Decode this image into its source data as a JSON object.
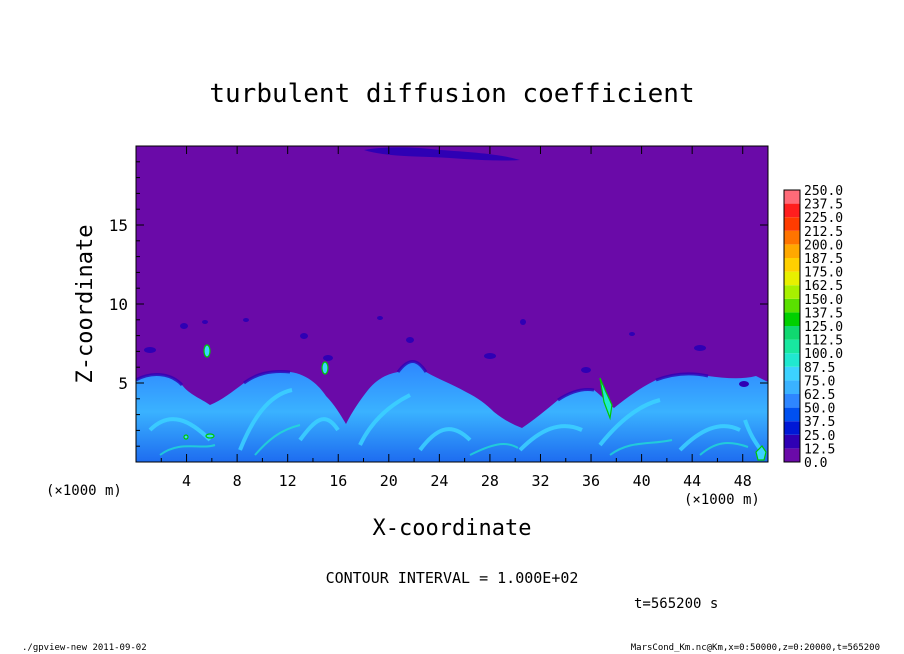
{
  "chart_data": {
    "type": "heatmap",
    "title": "turbulent diffusion coefficient",
    "xlabel": "X-coordinate",
    "ylabel": "Z-coordinate",
    "x_unit": "(×1000 m)",
    "y_unit": "(×1000 m)",
    "xlim": [
      0,
      50
    ],
    "ylim": [
      0,
      20
    ],
    "x_ticks": [
      4,
      8,
      12,
      16,
      20,
      24,
      28,
      32,
      36,
      40,
      44,
      48
    ],
    "y_ticks": [
      5,
      10,
      15
    ],
    "colorbar": {
      "levels": [
        "0.0",
        "12.5",
        "25.0",
        "37.5",
        "50.0",
        "62.5",
        "75.0",
        "87.5",
        "100.0",
        "112.5",
        "125.0",
        "137.5",
        "150.0",
        "162.5",
        "175.0",
        "187.5",
        "200.0",
        "212.5",
        "225.0",
        "237.5",
        "250.0"
      ],
      "colors": [
        "#6a0aa8",
        "#2f00b4",
        "#0018d6",
        "#0050f0",
        "#2e86ff",
        "#3ab2ff",
        "#3cd2ff",
        "#20e8d0",
        "#18e8a0",
        "#10d870",
        "#00d000",
        "#5ae000",
        "#a8f000",
        "#e8f000",
        "#ffd000",
        "#ffa800",
        "#ff7400",
        "#ff3c00",
        "#ff1e1e",
        "#ff6a78"
      ]
    },
    "field_description": "Background near 0.0 (purple) above ~5 km; turbulent layer below ~5 km with values up to ~100 (cyan/green); small high-value patches near x=6, 15, 37 and 48 km.",
    "colors": {
      "background_field": "#6a0aa8",
      "turbulent_main": "#3ab2ff",
      "turbulent_high": "#3cd2ff",
      "contour_line": "#00c800"
    }
  },
  "annotations": {
    "contour_interval": "CONTOUR INTERVAL = 1.000E+02",
    "time": "t=565200 s",
    "footer_left": "./gpview-new  2011-09-02",
    "footer_right": "MarsCond_Km.nc@Km,x=0:50000,z=0:20000,t=565200"
  }
}
